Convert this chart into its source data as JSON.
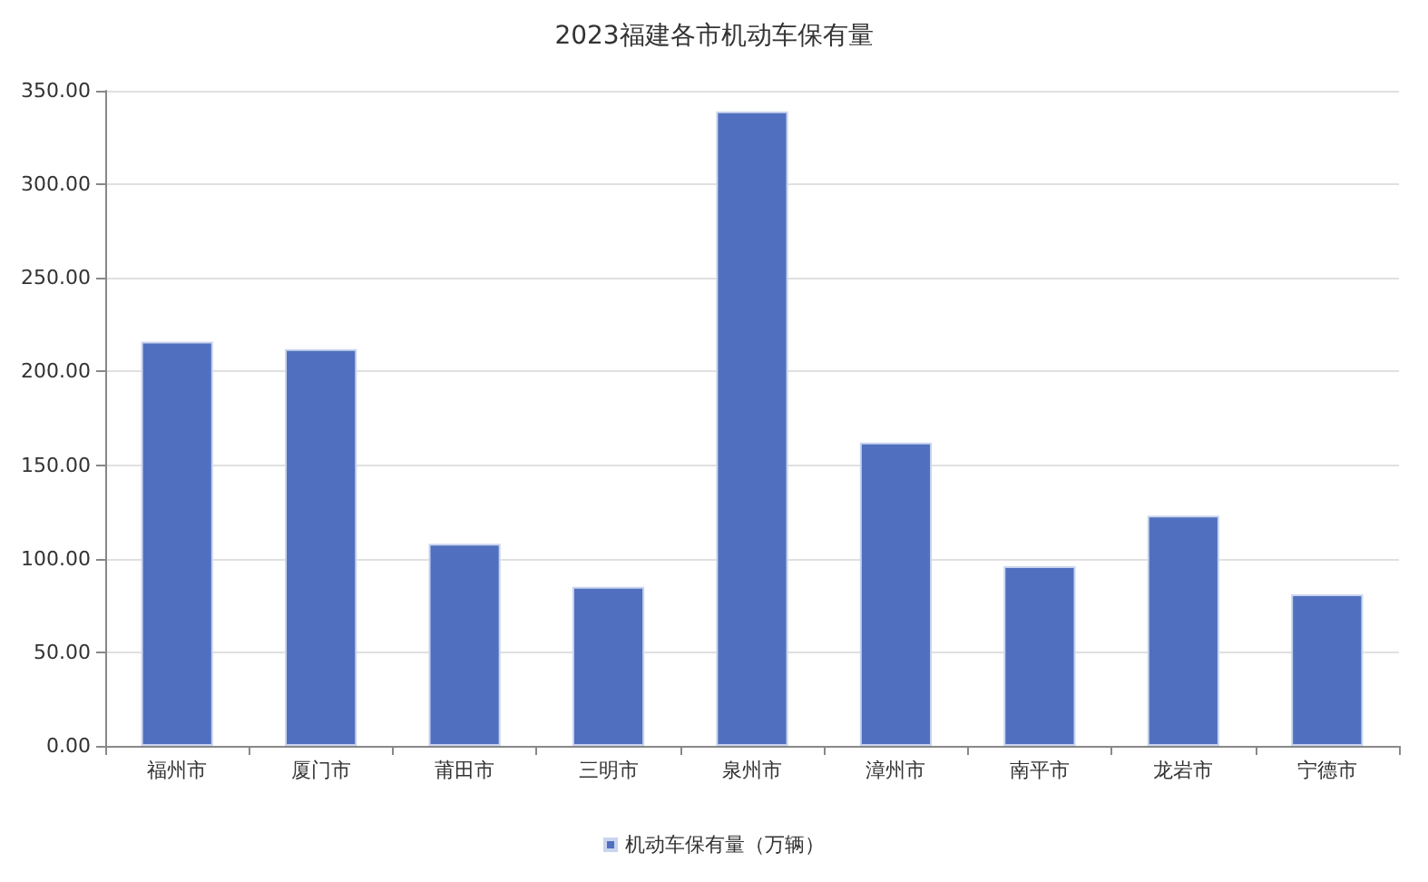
{
  "chart_data": {
    "type": "bar",
    "title": "2023福建各市机动车保有量",
    "categories": [
      "福州市",
      "厦门市",
      "莆田市",
      "三明市",
      "泉州市",
      "漳州市",
      "南平市",
      "龙岩市",
      "宁德市"
    ],
    "series": [
      {
        "name": "机动车保有量（万辆）",
        "color": "#5070bf",
        "values": [
          216,
          212,
          108,
          85,
          339,
          162,
          96,
          123,
          81
        ]
      }
    ],
    "ylim": [
      0,
      350
    ],
    "yticks": [
      {
        "value": 0,
        "label": "0.00"
      },
      {
        "value": 50,
        "label": "50.00"
      },
      {
        "value": 100,
        "label": "100.00"
      },
      {
        "value": 150,
        "label": "150.00"
      },
      {
        "value": 200,
        "label": "200.00"
      },
      {
        "value": 250,
        "label": "250.00"
      },
      {
        "value": 300,
        "label": "300.00"
      },
      {
        "value": 350,
        "label": "350.00"
      }
    ],
    "grid": "y",
    "legend": "bottom"
  }
}
